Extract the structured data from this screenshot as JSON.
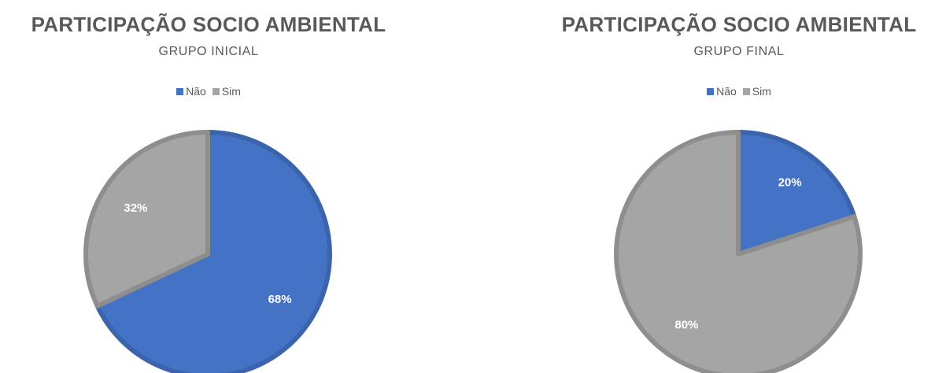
{
  "colors": {
    "nao": "#4472C4",
    "sim": "#A5A5A5",
    "text": "#595959"
  },
  "chart_data": [
    {
      "type": "pie",
      "title": "PARTICIPAÇÃO SOCIO AMBIENTAL",
      "subtitle": "GRUPO INICIAL",
      "legend_position": "top",
      "categories": [
        "Não",
        "Sim"
      ],
      "values": [
        68,
        32
      ],
      "data_labels": [
        "68%",
        "32%"
      ]
    },
    {
      "type": "pie",
      "title": "PARTICIPAÇÃO SOCIO AMBIENTAL",
      "subtitle": "GRUPO FINAL",
      "legend_position": "top",
      "categories": [
        "Não",
        "Sim"
      ],
      "values": [
        20,
        80
      ],
      "data_labels": [
        "20%",
        "80%"
      ]
    }
  ]
}
